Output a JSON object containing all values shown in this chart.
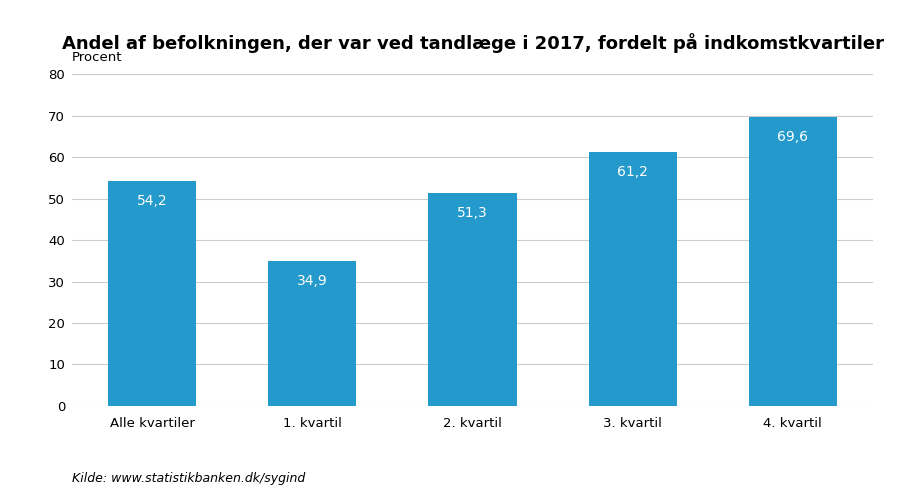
{
  "title": "Andel af befolkningen, der var ved tandlæge i 2017, fordelt på indkomstkvartiler",
  "categories": [
    "Alle kvartiler",
    "1. kvartil",
    "2. kvartil",
    "3. kvartil",
    "4. kvartil"
  ],
  "values": [
    54.2,
    34.9,
    51.3,
    61.2,
    69.6
  ],
  "labels": [
    "54,2",
    "34,9",
    "51,3",
    "61,2",
    "69,6"
  ],
  "bar_color": "#2399CC",
  "ylabel": "Procent",
  "ylim": [
    0,
    80
  ],
  "yticks": [
    0,
    10,
    20,
    30,
    40,
    50,
    60,
    70,
    80
  ],
  "footnote": "Kilde: www.statistikbanken.dk/sygind",
  "background_color": "#ffffff",
  "grid_color": "#cccccc",
  "title_fontsize": 13,
  "label_fontsize": 9.5,
  "tick_fontsize": 9.5,
  "footnote_fontsize": 9,
  "bar_label_fontsize": 10
}
